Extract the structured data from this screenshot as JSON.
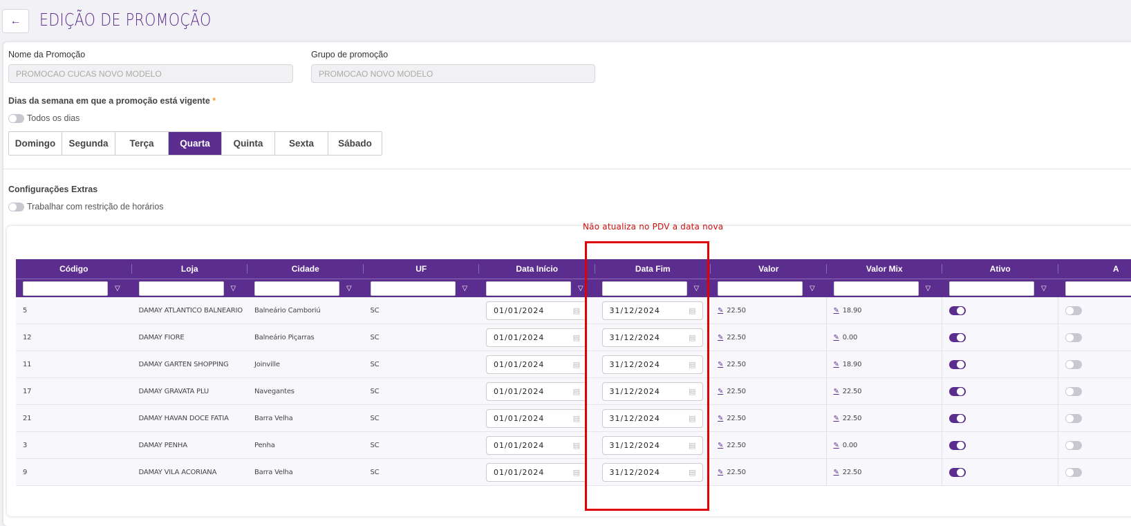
{
  "header": {
    "title": "EDIÇÃO DE PROMOÇÃO",
    "back_icon": "arrow-left-icon"
  },
  "form": {
    "nome_label": "Nome da Promoção",
    "nome_value": "PROMOCAO CUCAS NOVO MODELO",
    "grupo_label": "Grupo de promoção",
    "grupo_value": "PROMOCAO NOVO MODELO",
    "dias_label": "Dias da semana em que a promoção está vigente",
    "required_mark": "*",
    "todos_label": "Todos os dias",
    "todos_on": false,
    "days": [
      {
        "label": "Domingo",
        "selected": false
      },
      {
        "label": "Segunda",
        "selected": false
      },
      {
        "label": "Terça",
        "selected": false
      },
      {
        "label": "Quarta",
        "selected": true
      },
      {
        "label": "Quinta",
        "selected": false
      },
      {
        "label": "Sexta",
        "selected": false
      },
      {
        "label": "Sábado",
        "selected": false
      }
    ],
    "extras_label": "Configurações Extras",
    "restricao_label": "Trabalhar com restrição de horários",
    "restricao_on": false
  },
  "annotation": {
    "text": "Não atualiza no PDV a data nova",
    "color": "#e00000"
  },
  "table": {
    "columns": [
      "Código",
      "Loja",
      "Cidade",
      "UF",
      "Data Início",
      "Data Fim",
      "Valor",
      "Valor Mix",
      "Ativo",
      "A"
    ],
    "rows": [
      {
        "codigo": "5",
        "loja": "DAMAY ATLANTICO BALNEARIO",
        "cidade": "Balneário Camboriú",
        "uf": "SC",
        "inicio": "01/01/2024",
        "fim": "31/12/2024",
        "valor": "22.50",
        "mix": "18.90",
        "ativo": true,
        "extra": false
      },
      {
        "codigo": "12",
        "loja": "DAMAY FIORE",
        "cidade": "Balneário Piçarras",
        "uf": "SC",
        "inicio": "01/01/2024",
        "fim": "31/12/2024",
        "valor": "22.50",
        "mix": "0.00",
        "ativo": true,
        "extra": false
      },
      {
        "codigo": "11",
        "loja": "DAMAY GARTEN SHOPPING",
        "cidade": "Joinville",
        "uf": "SC",
        "inicio": "01/01/2024",
        "fim": "31/12/2024",
        "valor": "22.50",
        "mix": "18.90",
        "ativo": true,
        "extra": false
      },
      {
        "codigo": "17",
        "loja": "DAMAY GRAVATA PLU",
        "cidade": "Navegantes",
        "uf": "SC",
        "inicio": "01/01/2024",
        "fim": "31/12/2024",
        "valor": "22.50",
        "mix": "22.50",
        "ativo": true,
        "extra": false
      },
      {
        "codigo": "21",
        "loja": "DAMAY HAVAN DOCE FATIA",
        "cidade": "Barra Velha",
        "uf": "SC",
        "inicio": "01/01/2024",
        "fim": "31/12/2024",
        "valor": "22.50",
        "mix": "22.50",
        "ativo": true,
        "extra": false
      },
      {
        "codigo": "3",
        "loja": "DAMAY PENHA",
        "cidade": "Penha",
        "uf": "SC",
        "inicio": "01/01/2024",
        "fim": "31/12/2024",
        "valor": "22.50",
        "mix": "0.00",
        "ativo": true,
        "extra": false
      },
      {
        "codigo": "9",
        "loja": "DAMAY VILA ACORIANA",
        "cidade": "Barra Velha",
        "uf": "SC",
        "inicio": "01/01/2024",
        "fim": "31/12/2024",
        "valor": "22.50",
        "mix": "22.50",
        "ativo": true,
        "extra": false
      }
    ]
  },
  "colors": {
    "accent": "#5b2d8e"
  }
}
